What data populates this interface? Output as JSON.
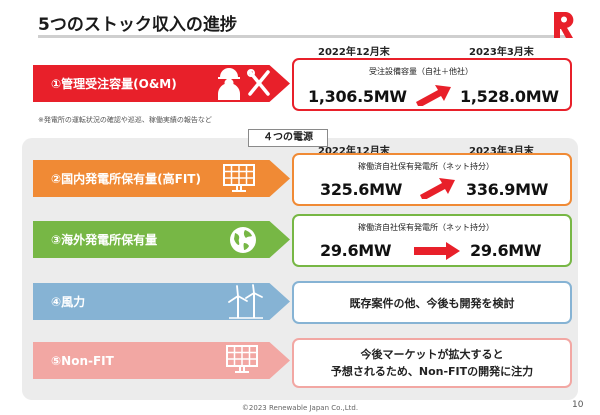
{
  "header": {
    "title": "5つのストック収入の進捗"
  },
  "top_dates": {
    "from": "2022年12月末",
    "to": "2023年3月末"
  },
  "panel_dates": {
    "from": "2022年12月末",
    "to": "2023年3月末"
  },
  "rows": [
    {
      "label": "①管理受注容量(O&M)",
      "color": "#e8202a",
      "box_border": "#e8202a",
      "box_label": "受注設備容量（自社＋他社）",
      "value_from": "1,306.5MW",
      "value_to": "1,528.0MW"
    },
    {
      "label": "②国内発電所保有量(高FIT)",
      "color": "#f08a35",
      "box_border": "#f08a35",
      "box_label": "稼働済自社保有発電所（ネット持分）",
      "value_from": "325.6MW",
      "value_to": "336.9MW"
    },
    {
      "label": "③海外発電所保有量",
      "color": "#77b745",
      "box_border": "#77b745",
      "box_label": "稼働済自社保有発電所（ネット持分）",
      "value_from": "29.6MW",
      "value_to": "29.6MW"
    },
    {
      "label": "④風力",
      "color": "#86b3d4",
      "box_border": "#86b3d4",
      "box_text": "既存案件の他、今後も開発を検討"
    },
    {
      "label": "⑤Non-FIT",
      "color": "#f2a7a3",
      "box_border": "#f2a7a3",
      "box_text_line1": "今後マーケットが拡大すると",
      "box_text_line2": "予想されるため、Non-FITの開発に注力"
    }
  ],
  "note": "※発電所の運転状況の確認や巡巡、稼働実績の報告など",
  "panel_tag": "４つの電源",
  "footer": "©2023 Renewable Japan Co.,Ltd.",
  "page_number": "10",
  "icons": [
    "worker-wrench-icon",
    "solar-panel-icon",
    "globe-icon",
    "wind-turbine-icon",
    "solar-panel-icon"
  ],
  "arrow_color": "#e8202a"
}
